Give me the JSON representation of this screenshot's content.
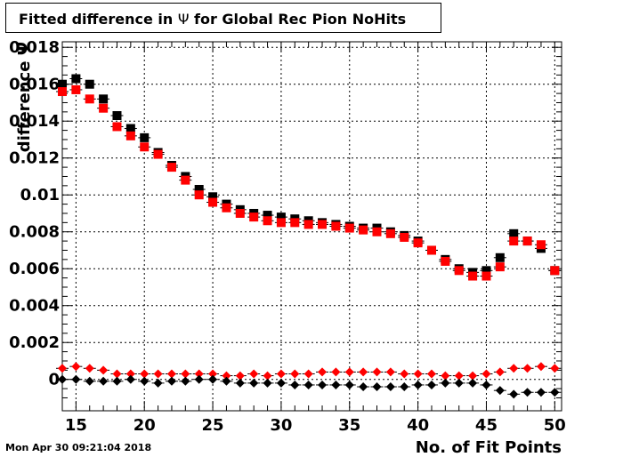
{
  "title_prefix": "Fitted difference in ",
  "title_symbol": "Ψ",
  "title_suffix": " for Global Rec Pion NoHits",
  "timestamp": "Mon Apr 30 09:21:04 2018",
  "chart_data": {
    "type": "scatter",
    "title": "Fitted difference in Ψ for Global Rec Pion NoHits",
    "xlabel": "No. of Fit Points",
    "ylabel": "difference Ψ",
    "xlim": [
      14,
      50.5
    ],
    "ylim": [
      -0.0017,
      0.0183
    ],
    "grid": true,
    "x_ticks": [
      15,
      20,
      25,
      30,
      35,
      40,
      45,
      50
    ],
    "x_tick_labels": [
      "15",
      "20",
      "25",
      "30",
      "35",
      "40",
      "45",
      "50"
    ],
    "y_ticks": [
      0,
      0.002,
      0.004,
      0.006,
      0.008,
      0.01,
      0.012,
      0.014,
      0.016,
      0.018
    ],
    "y_tick_labels": [
      "0",
      "0.002",
      "0.004",
      "0.006",
      "0.008",
      "0.01",
      "0.012",
      "0.014",
      "0.016",
      "0.018"
    ],
    "series": [
      {
        "marker": "square",
        "color": "#000000",
        "x": [
          14,
          15,
          16,
          17,
          18,
          19,
          20,
          21,
          22,
          23,
          24,
          25,
          26,
          27,
          28,
          29,
          30,
          31,
          32,
          33,
          34,
          35,
          36,
          37,
          38,
          39,
          40,
          41,
          42,
          43,
          44,
          45,
          46,
          47,
          48,
          49,
          50
        ],
        "values": [
          0.016,
          0.0163,
          0.016,
          0.0152,
          0.0143,
          0.0136,
          0.0131,
          0.0123,
          0.0116,
          0.011,
          0.0103,
          0.0099,
          0.0095,
          0.0092,
          0.009,
          0.0089,
          0.0088,
          0.0087,
          0.0086,
          0.0085,
          0.0084,
          0.0083,
          0.0082,
          0.0082,
          0.008,
          0.0078,
          0.0075,
          0.007,
          0.0065,
          0.006,
          0.0058,
          0.0059,
          0.0066,
          0.0079,
          0.0075,
          0.0071,
          0.0059
        ]
      },
      {
        "marker": "square",
        "color": "#ff0000",
        "x": [
          14,
          15,
          16,
          17,
          18,
          19,
          20,
          21,
          22,
          23,
          24,
          25,
          26,
          27,
          28,
          29,
          30,
          31,
          32,
          33,
          34,
          35,
          36,
          37,
          38,
          39,
          40,
          41,
          42,
          43,
          44,
          45,
          46,
          47,
          48,
          49,
          50
        ],
        "values": [
          0.0156,
          0.0157,
          0.0152,
          0.0147,
          0.0137,
          0.0132,
          0.0126,
          0.0122,
          0.0115,
          0.0108,
          0.01,
          0.0096,
          0.0093,
          0.009,
          0.0088,
          0.0086,
          0.0085,
          0.0085,
          0.0084,
          0.0084,
          0.0083,
          0.0082,
          0.0081,
          0.008,
          0.0079,
          0.0077,
          0.0074,
          0.007,
          0.0064,
          0.0059,
          0.0056,
          0.0056,
          0.0061,
          0.0075,
          0.0075,
          0.0073,
          0.0059
        ]
      },
      {
        "marker": "diamond",
        "color": "#ff0000",
        "x": [
          14,
          15,
          16,
          17,
          18,
          19,
          20,
          21,
          22,
          23,
          24,
          25,
          26,
          27,
          28,
          29,
          30,
          31,
          32,
          33,
          34,
          35,
          36,
          37,
          38,
          39,
          40,
          41,
          42,
          43,
          44,
          45,
          46,
          47,
          48,
          49,
          50
        ],
        "values": [
          0.0006,
          0.0007,
          0.0006,
          0.0005,
          0.0003,
          0.0003,
          0.0003,
          0.0003,
          0.0003,
          0.0003,
          0.0003,
          0.0003,
          0.0002,
          0.0002,
          0.0003,
          0.0002,
          0.0003,
          0.0003,
          0.0003,
          0.0004,
          0.0004,
          0.0004,
          0.0004,
          0.0004,
          0.0004,
          0.0003,
          0.0003,
          0.0003,
          0.0002,
          0.0002,
          0.0002,
          0.0003,
          0.0004,
          0.0006,
          0.0006,
          0.0007,
          0.0006
        ]
      },
      {
        "marker": "diamond",
        "color": "#000000",
        "x": [
          14,
          15,
          16,
          17,
          18,
          19,
          20,
          21,
          22,
          23,
          24,
          25,
          26,
          27,
          28,
          29,
          30,
          31,
          32,
          33,
          34,
          35,
          36,
          37,
          38,
          39,
          40,
          41,
          42,
          43,
          44,
          45,
          46,
          47,
          48,
          49,
          50
        ],
        "values": [
          0.0,
          0.0,
          -0.0001,
          -0.0001,
          -0.0001,
          0.0,
          -0.0001,
          -0.0002,
          -0.0001,
          -0.0001,
          0.0,
          0.0,
          -0.0001,
          -0.0002,
          -0.0002,
          -0.0002,
          -0.0002,
          -0.0003,
          -0.0003,
          -0.0003,
          -0.0003,
          -0.0003,
          -0.0004,
          -0.0004,
          -0.0004,
          -0.0004,
          -0.0003,
          -0.0003,
          -0.0002,
          -0.0002,
          -0.0002,
          -0.0003,
          -0.0006,
          -0.0008,
          -0.0007,
          -0.0007,
          -0.0007
        ]
      }
    ]
  }
}
